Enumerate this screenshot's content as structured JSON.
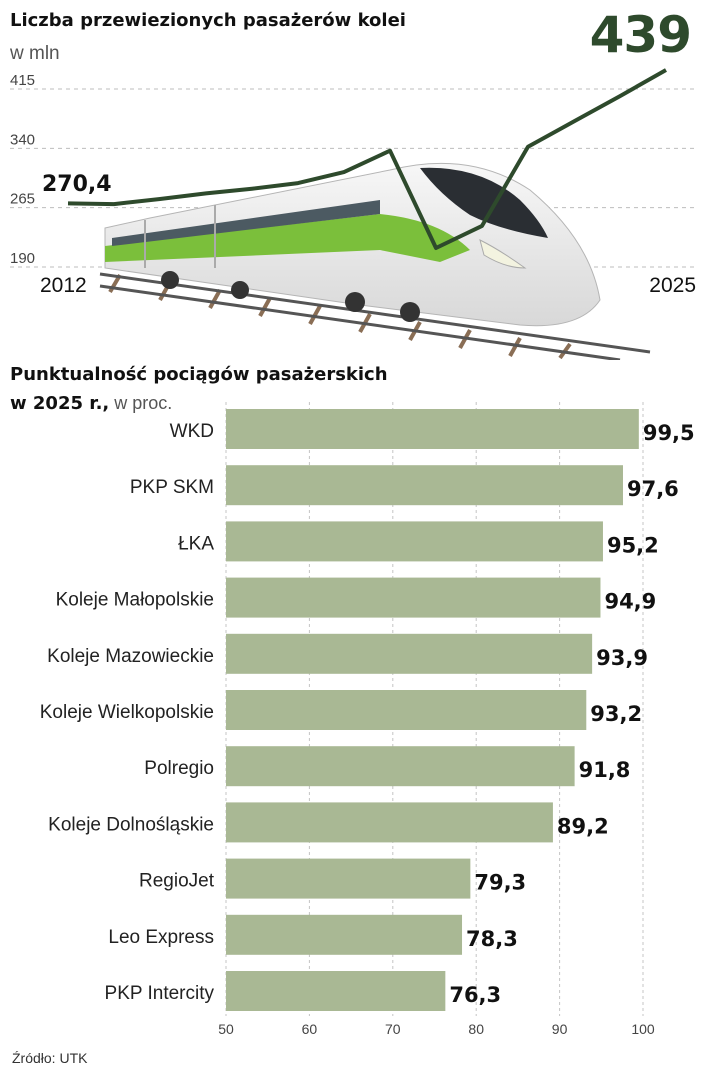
{
  "chart_data": [
    {
      "type": "line",
      "title": "Liczba przewiezionych pasażerów kolei",
      "subtitle": "w mln",
      "highlight_value": "439",
      "x_start_label": "2012",
      "x_end_label": "2025",
      "start_value_label": "270,4",
      "y_ticks": [
        "415",
        "340",
        "265",
        "190"
      ],
      "ylim": [
        190,
        415
      ],
      "x": [
        2012,
        2013,
        2014,
        2015,
        2016,
        2017,
        2018,
        2019,
        2020,
        2021,
        2022,
        2023,
        2024,
        2025
      ],
      "values": [
        270.4,
        269.5,
        276,
        283,
        289,
        296,
        310,
        337,
        214,
        242,
        342,
        374,
        406,
        439
      ],
      "series_color": "#2e4a2c",
      "grid": true
    },
    {
      "type": "bar",
      "orientation": "horizontal",
      "title": "Punktualność pociągów pasażerskich",
      "subtitle_bold": "w 2025 r.,",
      "subtitle_normal": " w proc.",
      "categories": [
        "WKD",
        "PKP SKM",
        "ŁKA",
        "Koleje Małopolskie",
        "Koleje Mazowieckie",
        "Koleje Wielkopolskie",
        "Polregio",
        "Koleje Dolnośląskie",
        "RegioJet",
        "Leo Express",
        "PKP Intercity"
      ],
      "values": [
        99.5,
        97.6,
        95.2,
        94.9,
        93.9,
        93.2,
        91.8,
        89.2,
        79.3,
        78.3,
        76.3
      ],
      "value_labels": [
        "99,5",
        "97,6",
        "95,2",
        "94,9",
        "93,9",
        "93,2",
        "91,8",
        "89,2",
        "79,3",
        "78,3",
        "76,3"
      ],
      "xlim": [
        50,
        100
      ],
      "x_ticks": [
        "50",
        "60",
        "70",
        "80",
        "90",
        "100"
      ],
      "bar_color": "#a9b894",
      "grid": true
    }
  ],
  "source": "Źródło: UTK"
}
